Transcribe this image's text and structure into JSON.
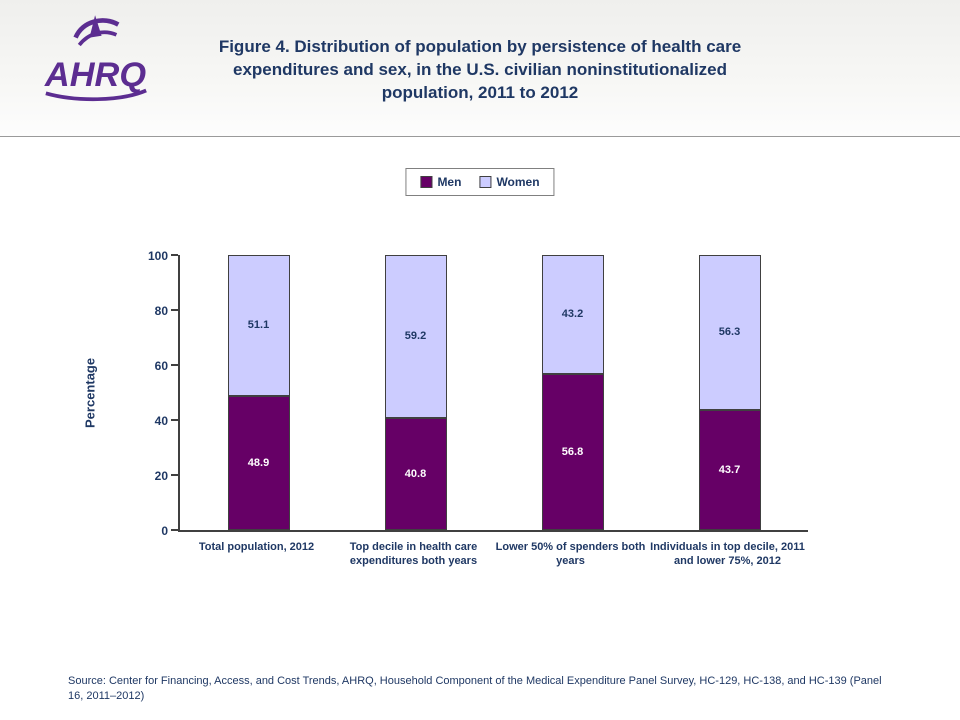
{
  "header": {
    "title": "Figure 4. Distribution of population by persistence of health care expenditures and sex, in the U.S. civilian noninstitutionalized population, 2011 to 2012"
  },
  "logo": {
    "text": "AHRQ",
    "color": "#5C2D91"
  },
  "chart_data": {
    "type": "bar",
    "stacked": true,
    "categories": [
      "Total population, 2012",
      "Top decile in health care expenditures both years",
      "Lower 50% of spenders both years",
      "Individuals in top decile, 2011 and lower 75%, 2012"
    ],
    "series": [
      {
        "name": "Men",
        "values": [
          48.9,
          40.8,
          56.8,
          43.7
        ],
        "color": "#660066",
        "label_color": "#FFFFFF"
      },
      {
        "name": "Women",
        "values": [
          51.1,
          59.2,
          43.2,
          56.3
        ],
        "color": "#CCCCFF",
        "label_color": "#1F3864"
      }
    ],
    "title": "",
    "xlabel": "",
    "ylabel": "Percentage",
    "ylim": [
      0,
      100
    ],
    "yticks": [
      0,
      20,
      40,
      60,
      80,
      100
    ],
    "legend_position": "top",
    "grid": false
  },
  "source": {
    "text": "Source: Center for Financing, Access, and Cost Trends, AHRQ, Household Component of the Medical Expenditure Panel Survey, HC-129, HC-138, and HC-139 (Panel 16, 2011–2012)"
  },
  "colors": {
    "text_navy": "#1F3864",
    "bar_border": "#404040",
    "axis": "#404040"
  }
}
